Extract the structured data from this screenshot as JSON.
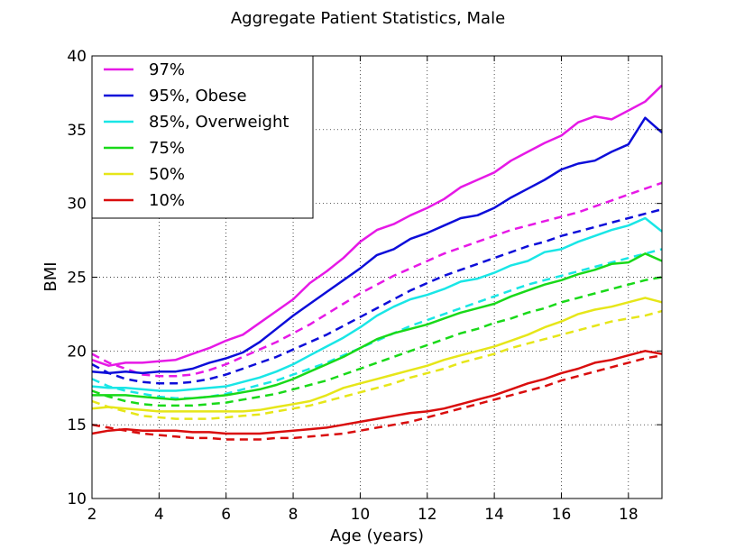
{
  "chart_data": {
    "type": "line",
    "title": "Aggregate Patient Statistics, Male",
    "xlabel": "Age (years)",
    "ylabel": "BMI",
    "xlim": [
      2,
      19
    ],
    "ylim": [
      10,
      40
    ],
    "xticks": [
      2,
      4,
      6,
      8,
      10,
      12,
      14,
      16,
      18
    ],
    "yticks": [
      10,
      15,
      20,
      25,
      30,
      35,
      40
    ],
    "grid": true,
    "grid_style": "dotted",
    "legend_position": "top-left",
    "x": [
      2,
      2.5,
      3,
      3.5,
      4,
      4.5,
      5,
      5.5,
      6,
      6.5,
      7,
      7.5,
      8,
      8.5,
      9,
      9.5,
      10,
      10.5,
      11,
      11.5,
      12,
      12.5,
      13,
      13.5,
      14,
      14.5,
      15,
      15.5,
      16,
      16.5,
      17,
      17.5,
      18,
      18.5,
      19
    ],
    "series": [
      {
        "name": "97%",
        "color": "#e619e6",
        "values": [
          19.4,
          19.0,
          19.2,
          19.2,
          19.3,
          19.4,
          19.8,
          20.2,
          20.7,
          21.1,
          21.9,
          22.7,
          23.5,
          24.6,
          25.4,
          26.3,
          27.4,
          28.2,
          28.6,
          29.2,
          29.7,
          30.3,
          31.1,
          31.6,
          32.1,
          32.9,
          33.5,
          34.1,
          34.6,
          35.5,
          35.9,
          35.7,
          36.3,
          36.9,
          38.0
        ]
      },
      {
        "name": "95%, Obese",
        "color": "#0d0dd9",
        "values": [
          18.6,
          18.5,
          18.6,
          18.5,
          18.6,
          18.6,
          18.8,
          19.2,
          19.5,
          19.9,
          20.6,
          21.5,
          22.4,
          23.2,
          24.0,
          24.8,
          25.6,
          26.5,
          26.9,
          27.6,
          28.0,
          28.5,
          29.0,
          29.2,
          29.7,
          30.4,
          31.0,
          31.6,
          32.3,
          32.7,
          32.9,
          33.5,
          34.0,
          35.8,
          34.8
        ]
      },
      {
        "name": "85%, Overweight",
        "color": "#19e6e6",
        "values": [
          17.6,
          17.5,
          17.5,
          17.4,
          17.3,
          17.3,
          17.4,
          17.5,
          17.6,
          17.9,
          18.2,
          18.6,
          19.1,
          19.7,
          20.3,
          20.9,
          21.6,
          22.4,
          23.0,
          23.5,
          23.8,
          24.2,
          24.7,
          24.9,
          25.3,
          25.8,
          26.1,
          26.7,
          26.9,
          27.4,
          27.8,
          28.2,
          28.5,
          29.0,
          28.1
        ]
      },
      {
        "name": "75%",
        "color": "#19d919",
        "values": [
          17.0,
          17.0,
          17.0,
          16.9,
          16.8,
          16.7,
          16.8,
          16.9,
          17.0,
          17.2,
          17.4,
          17.7,
          18.1,
          18.6,
          19.1,
          19.6,
          20.2,
          20.8,
          21.2,
          21.5,
          21.8,
          22.2,
          22.6,
          22.9,
          23.2,
          23.7,
          24.1,
          24.5,
          24.8,
          25.2,
          25.5,
          25.9,
          26.0,
          26.6,
          26.1
        ]
      },
      {
        "name": "50%",
        "color": "#e6e619",
        "values": [
          16.1,
          16.2,
          16.1,
          16.0,
          15.9,
          15.9,
          15.9,
          15.9,
          15.9,
          15.9,
          16.0,
          16.2,
          16.4,
          16.6,
          17.0,
          17.5,
          17.8,
          18.1,
          18.4,
          18.7,
          19.0,
          19.4,
          19.7,
          20.0,
          20.3,
          20.7,
          21.1,
          21.6,
          22.0,
          22.5,
          22.8,
          23.0,
          23.3,
          23.6,
          23.3
        ]
      },
      {
        "name": "10%",
        "color": "#d90d0d",
        "values": [
          14.4,
          14.6,
          14.7,
          14.6,
          14.6,
          14.6,
          14.5,
          14.5,
          14.4,
          14.4,
          14.4,
          14.5,
          14.6,
          14.7,
          14.8,
          15.0,
          15.2,
          15.4,
          15.6,
          15.8,
          15.9,
          16.1,
          16.4,
          16.7,
          17.0,
          17.4,
          17.8,
          18.1,
          18.5,
          18.8,
          19.2,
          19.4,
          19.7,
          20.0,
          19.8
        ]
      }
    ],
    "reference_series": [
      {
        "color": "#e619e6",
        "values": [
          19.8,
          19.2,
          18.8,
          18.4,
          18.3,
          18.3,
          18.4,
          18.7,
          19.1,
          19.6,
          20.1,
          20.6,
          21.2,
          21.8,
          22.5,
          23.2,
          23.9,
          24.5,
          25.1,
          25.6,
          26.1,
          26.6,
          27.0,
          27.4,
          27.8,
          28.2,
          28.5,
          28.8,
          29.1,
          29.4,
          29.8,
          30.2,
          30.6,
          31.0,
          31.4
        ]
      },
      {
        "color": "#0d0dd9",
        "values": [
          19.1,
          18.5,
          18.1,
          17.9,
          17.8,
          17.8,
          17.9,
          18.1,
          18.4,
          18.8,
          19.2,
          19.6,
          20.1,
          20.6,
          21.1,
          21.7,
          22.3,
          22.9,
          23.5,
          24.1,
          24.6,
          25.1,
          25.5,
          25.9,
          26.3,
          26.7,
          27.1,
          27.4,
          27.8,
          28.1,
          28.4,
          28.7,
          29.0,
          29.3,
          29.6
        ]
      },
      {
        "color": "#19e6e6",
        "values": [
          18.1,
          17.6,
          17.3,
          17.1,
          16.9,
          16.8,
          16.8,
          16.9,
          17.1,
          17.4,
          17.7,
          18.0,
          18.4,
          18.8,
          19.2,
          19.7,
          20.2,
          20.7,
          21.2,
          21.7,
          22.1,
          22.5,
          22.9,
          23.3,
          23.7,
          24.1,
          24.5,
          24.8,
          25.1,
          25.4,
          25.7,
          26.0,
          26.3,
          26.6,
          26.9
        ]
      },
      {
        "color": "#19d919",
        "values": [
          17.3,
          16.9,
          16.6,
          16.4,
          16.3,
          16.3,
          16.3,
          16.4,
          16.5,
          16.7,
          16.9,
          17.1,
          17.4,
          17.7,
          18.0,
          18.4,
          18.8,
          19.2,
          19.6,
          20.0,
          20.4,
          20.8,
          21.2,
          21.5,
          21.9,
          22.2,
          22.6,
          22.9,
          23.3,
          23.6,
          23.9,
          24.2,
          24.5,
          24.8,
          25.0
        ]
      },
      {
        "color": "#e6e619",
        "values": [
          16.6,
          16.2,
          15.9,
          15.6,
          15.5,
          15.4,
          15.4,
          15.4,
          15.5,
          15.6,
          15.7,
          15.9,
          16.1,
          16.3,
          16.6,
          16.9,
          17.2,
          17.5,
          17.8,
          18.2,
          18.5,
          18.8,
          19.2,
          19.5,
          19.8,
          20.2,
          20.5,
          20.8,
          21.1,
          21.4,
          21.7,
          22.0,
          22.2,
          22.4,
          22.7
        ]
      },
      {
        "color": "#d90d0d",
        "values": [
          15.0,
          14.8,
          14.6,
          14.4,
          14.3,
          14.2,
          14.1,
          14.1,
          14.0,
          14.0,
          14.0,
          14.1,
          14.1,
          14.2,
          14.3,
          14.4,
          14.6,
          14.8,
          15.0,
          15.2,
          15.5,
          15.8,
          16.1,
          16.4,
          16.7,
          17.0,
          17.3,
          17.6,
          18.0,
          18.3,
          18.6,
          18.9,
          19.2,
          19.5,
          19.7
        ]
      }
    ]
  }
}
